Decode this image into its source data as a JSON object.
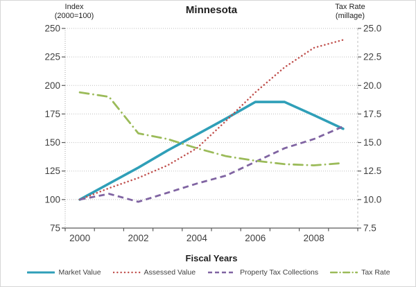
{
  "chart_data": {
    "type": "line",
    "title": "Minnesota",
    "x_axis_title": "Fiscal Years",
    "left_axis_header": "Index\n(2000=100)",
    "right_axis_header": "Tax Rate\n(millage)",
    "categories": [
      2000,
      2001,
      2002,
      2003,
      2004,
      2005,
      2006,
      2007,
      2008,
      2009
    ],
    "x_tick_labels": [
      "2000",
      "2002",
      "2004",
      "2006",
      "2008"
    ],
    "x_tick_indices": [
      0,
      2,
      4,
      6,
      8
    ],
    "left_axis": {
      "min": 75,
      "max": 250,
      "step": 25,
      "tick_labels": [
        "250",
        "225",
        "200",
        "175",
        "150",
        "125",
        "100",
        "75"
      ]
    },
    "right_axis": {
      "min": 7.5,
      "max": 25.0,
      "step": 2.5,
      "tick_labels": [
        "25.0",
        "22.5",
        "20.0",
        "17.5",
        "15.0",
        "12.5",
        "10.0",
        "7.5"
      ]
    },
    "grid": "horizontal-dotted",
    "legend_position": "bottom",
    "colors": {
      "grid": "#bdbdbd",
      "axis": "#595959",
      "tick_text": "#3f3f3f"
    },
    "series": [
      {
        "name": "Market Value",
        "axis": "left",
        "style": "solid",
        "color": "#2f9fb8",
        "values": [
          100,
          114,
          128,
          143,
          157,
          171,
          185.5,
          185.5,
          174,
          162
        ]
      },
      {
        "name": "Assessed Value",
        "axis": "left",
        "style": "dotted",
        "color": "#c0504d",
        "values": [
          100,
          110,
          119,
          130,
          145,
          169,
          194,
          216,
          233,
          240
        ]
      },
      {
        "name": "Property Tax Collections",
        "axis": "left",
        "style": "dashed",
        "color": "#8064a2",
        "values": [
          100,
          105,
          98,
          106,
          114,
          121,
          133,
          145,
          153,
          164
        ]
      },
      {
        "name": "Tax Rate",
        "axis": "right",
        "style": "dashdot",
        "color": "#9bbb59",
        "values": [
          19.4,
          19.0,
          15.8,
          15.3,
          14.5,
          13.8,
          13.4,
          13.1,
          13.0,
          13.2
        ]
      }
    ]
  }
}
